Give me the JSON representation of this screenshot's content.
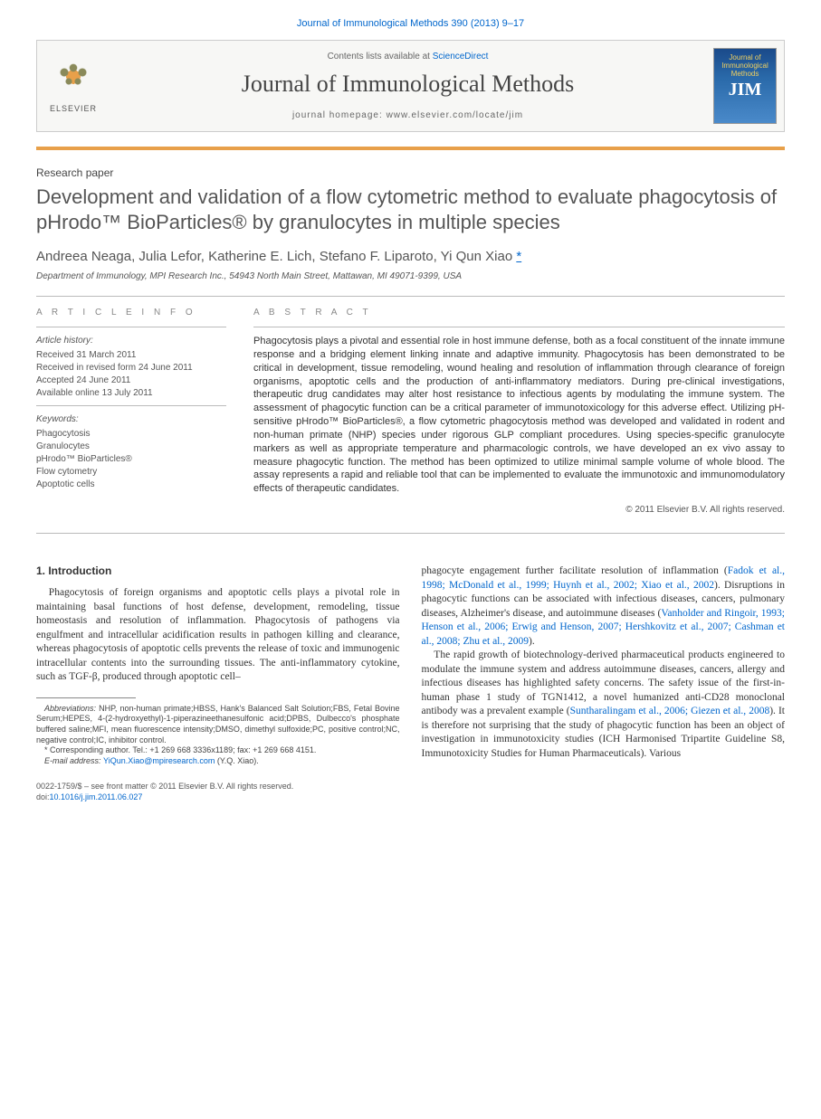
{
  "citation": "Journal of Immunological Methods 390 (2013) 9–17",
  "header": {
    "contents_prefix": "Contents lists available at ",
    "contents_link": "ScienceDirect",
    "journal_name": "Journal of Immunological Methods",
    "homepage_prefix": "journal homepage: ",
    "homepage_url": "www.elsevier.com/locate/jim",
    "elsevier_label": "ELSEVIER",
    "cover_small": "Journal of Immunological Methods",
    "cover_jim": "JIM"
  },
  "article_type": "Research paper",
  "title": "Development and validation of a flow cytometric method to evaluate phagocytosis of pHrodo™ BioParticles® by granulocytes in multiple species",
  "authors": "Andreea Neaga, Julia Lefor, Katherine E. Lich, Stefano F. Liparoto, Yi Qun Xiao",
  "corr_marker": "*",
  "affiliation": "Department of Immunology, MPI Research Inc., 54943 North Main Street, Mattawan, MI 49071-9399, USA",
  "labels": {
    "article_info": "A R T I C L E   I N F O",
    "abstract": "A B S T R A C T"
  },
  "history": {
    "title": "Article history:",
    "received": "Received 31 March 2011",
    "revised": "Received in revised form 24 June 2011",
    "accepted": "Accepted 24 June 2011",
    "online": "Available online 13 July 2011"
  },
  "keywords": {
    "title": "Keywords:",
    "items": [
      "Phagocytosis",
      "Granulocytes",
      "pHrodo™ BioParticles®",
      "Flow cytometry",
      "Apoptotic cells"
    ]
  },
  "abstract": "Phagocytosis plays a pivotal and essential role in host immune defense, both as a focal constituent of the innate immune response and a bridging element linking innate and adaptive immunity. Phagocytosis has been demonstrated to be critical in development, tissue remodeling, wound healing and resolution of inflammation through clearance of foreign organisms, apoptotic cells and the production of anti-inflammatory mediators. During pre-clinical investigations, therapeutic drug candidates may alter host resistance to infectious agents by modulating the immune system. The assessment of phagocytic function can be a critical parameter of immunotoxicology for this adverse effect. Utilizing pH-sensitive pHrodo™ BioParticles®, a flow cytometric phagocytosis method was developed and validated in rodent and non-human primate (NHP) species under rigorous GLP compliant procedures. Using species-specific granulocyte markers as well as appropriate temperature and pharmacologic controls, we have developed an ex vivo assay to measure phagocytic function. The method has been optimized to utilize minimal sample volume of whole blood. The assay represents a rapid and reliable tool that can be implemented to evaluate the immunotoxic and immunomodulatory effects of therapeutic candidates.",
  "copyright": "© 2011 Elsevier B.V. All rights reserved.",
  "intro": {
    "heading": "1. Introduction",
    "para1": "Phagocytosis of foreign organisms and apoptotic cells plays a pivotal role in maintaining basal functions of host defense, development, remodeling, tissue homeostasis and resolution of inflammation. Phagocytosis of pathogens via engulfment and intracellular acidification results in pathogen killing and clearance, whereas phagocytosis of apoptotic cells prevents the release of toxic and immunogenic intracellular contents into the surrounding tissues. The anti-inflammatory cytokine, such as TGF-β, produced through apoptotic cell–",
    "para2a": "phagocyte engagement further facilitate resolution of inflammation (",
    "para2_link1": "Fadok et al., 1998; McDonald et al., 1999; Huynh et al., 2002; Xiao et al., 2002",
    "para2b": "). Disruptions in phagocytic functions can be associated with infectious diseases, cancers, pulmonary diseases, Alzheimer's disease, and autoimmune diseases (",
    "para2_link2": "Vanholder and Ringoir, 1993; Henson et al., 2006; Erwig and Henson, 2007; Hershkovitz et al., 2007; Cashman et al., 2008; Zhu et al., 2009",
    "para2c": ").",
    "para3a": "The rapid growth of biotechnology-derived pharmaceutical products engineered to modulate the immune system and address autoimmune diseases, cancers, allergy and infectious diseases has highlighted safety concerns. The safety issue of the first-in-human phase 1 study of TGN1412, a novel humanized anti-CD28 monoclonal antibody was a prevalent example (",
    "para3_link": "Suntharalingam et al., 2006; Giezen et al., 2008",
    "para3b": "). It is therefore not surprising that the study of phagocytic function has been an object of investigation in immunotoxicity studies (ICH Harmonised Tripartite Guideline S8, Immunotoxicity Studies for Human Pharmaceuticals). Various"
  },
  "footnotes": {
    "abbrev_label": "Abbreviations:",
    "abbrev": " NHP, non-human primate;HBSS, Hank's Balanced Salt Solution;FBS, Fetal Bovine Serum;HEPES, 4-(2-hydroxyethyl)-1-piperazineethanesulfonic acid;DPBS, Dulbecco's phosphate buffered saline;MFI, mean fluorescence intensity;DMSO, dimethyl sulfoxide;PC, positive control;NC, negative control;IC, inhibitor control.",
    "corr": "* Corresponding author. Tel.: +1 269 668 3336x1189; fax: +1 269 668 4151.",
    "email_label": "E-mail address: ",
    "email": "YiQun.Xiao@mpiresearch.com",
    "email_suffix": " (Y.Q. Xiao)."
  },
  "footer": {
    "issn": "0022-1759/$ – see front matter © 2011 Elsevier B.V. All rights reserved.",
    "doi_label": "doi:",
    "doi": "10.1016/j.jim.2011.06.027"
  },
  "colors": {
    "link": "#0066cc",
    "orange_bar": "#e8a04a",
    "text": "#333333",
    "muted": "#666666"
  }
}
